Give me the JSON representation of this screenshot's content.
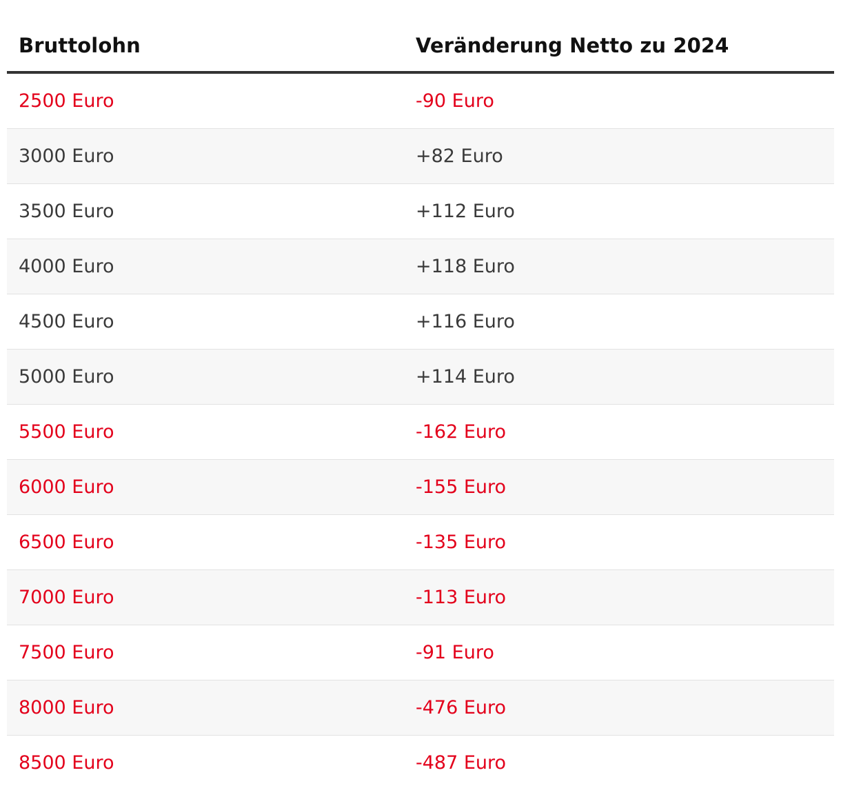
{
  "table": {
    "headers": [
      "Bruttolohn",
      "Veränderung Netto zu 2024"
    ],
    "rows": [
      {
        "brutto": "2500 Euro",
        "change": "-90 Euro",
        "negative": true
      },
      {
        "brutto": "3000 Euro",
        "change": "+82 Euro",
        "negative": false
      },
      {
        "brutto": "3500 Euro",
        "change": "+112 Euro",
        "negative": false
      },
      {
        "brutto": "4000 Euro",
        "change": "+118 Euro",
        "negative": false
      },
      {
        "brutto": "4500 Euro",
        "change": "+116 Euro",
        "negative": false
      },
      {
        "brutto": "5000 Euro",
        "change": "+114 Euro",
        "negative": false
      },
      {
        "brutto": "5500 Euro",
        "change": "-162 Euro",
        "negative": true
      },
      {
        "brutto": "6000 Euro",
        "change": "-155 Euro",
        "negative": true
      },
      {
        "brutto": "6500 Euro",
        "change": "-135 Euro",
        "negative": true
      },
      {
        "brutto": "7000 Euro",
        "change": "-113 Euro",
        "negative": true
      },
      {
        "brutto": "7500 Euro",
        "change": "-91 Euro",
        "negative": true
      },
      {
        "brutto": "8000 Euro",
        "change": "-476 Euro",
        "negative": true
      },
      {
        "brutto": "8500 Euro",
        "change": "-487 Euro",
        "negative": true
      }
    ]
  },
  "colors": {
    "negative": "#e3001b",
    "positive": "#3a3a3a",
    "header_rule": "#333333",
    "zebra": "#f7f7f7"
  }
}
